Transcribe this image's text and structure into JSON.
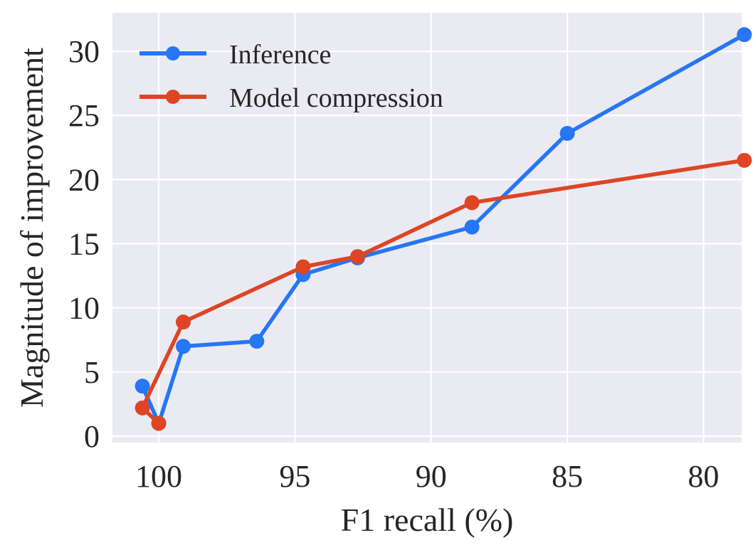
{
  "chart_data": {
    "type": "line",
    "title": "",
    "xlabel": "F1 recall (%)",
    "ylabel": "Magnitude of improvement",
    "xlim": [
      101.7,
      78.6
    ],
    "ylim": [
      -0.5,
      33
    ],
    "x_inverted": true,
    "xticks": [
      100,
      95,
      90,
      85,
      80
    ],
    "yticks": [
      0,
      5,
      10,
      15,
      20,
      25,
      30
    ],
    "grid": true,
    "legend_position": "top-left",
    "series": [
      {
        "name": "Inference",
        "color": "#2676f5",
        "x": [
          100.6,
          100.0,
          99.1,
          96.4,
          94.7,
          92.7,
          88.5,
          85.0,
          78.5
        ],
        "y": [
          3.9,
          1.0,
          7.0,
          7.4,
          12.6,
          13.9,
          16.3,
          23.6,
          31.3
        ]
      },
      {
        "name": "Model compression",
        "color": "#de4524",
        "x": [
          100.0,
          100.6,
          99.1,
          94.7,
          92.7,
          88.5,
          78.5
        ],
        "y": [
          1.0,
          2.2,
          8.9,
          13.2,
          14.0,
          18.2,
          21.5
        ]
      }
    ]
  }
}
